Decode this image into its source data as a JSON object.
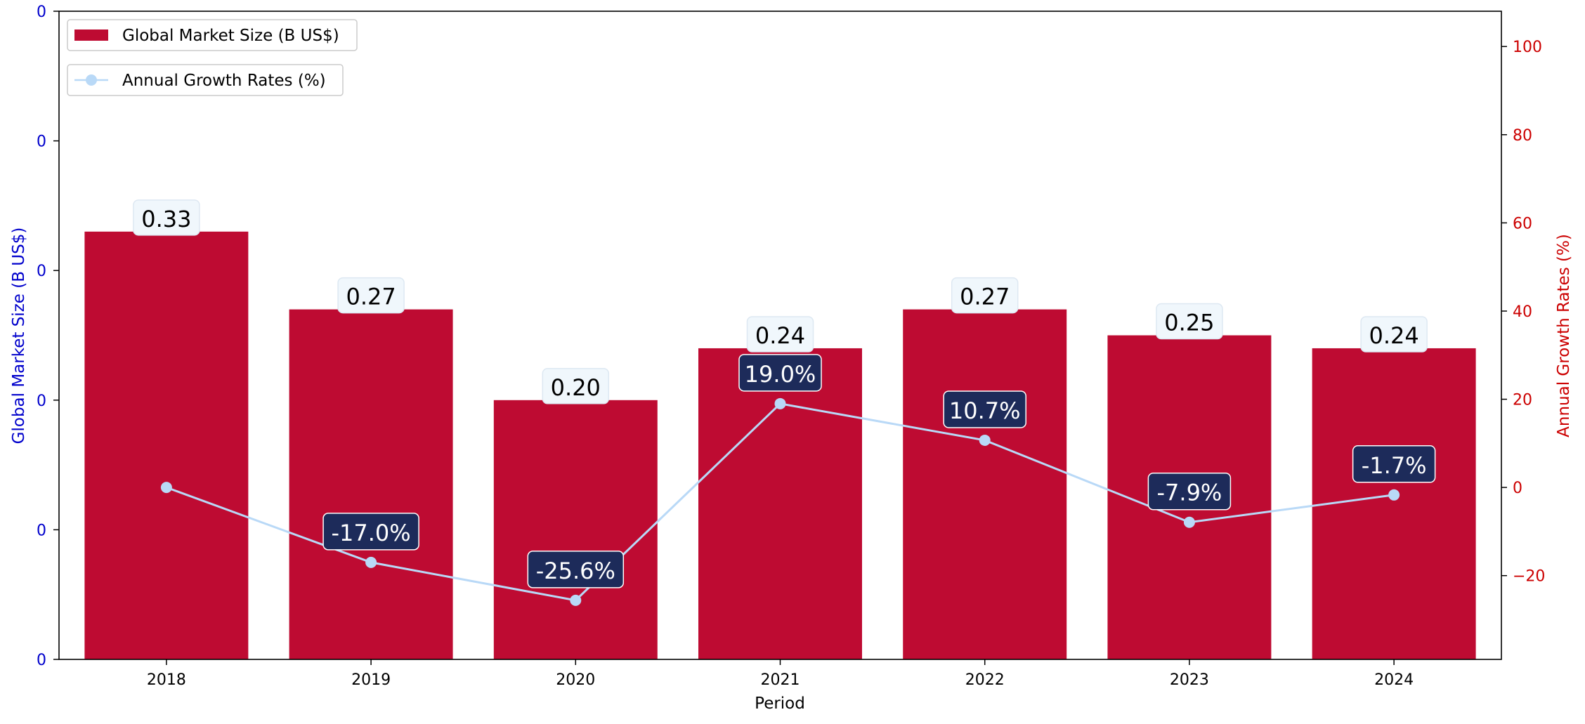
{
  "chart_data": {
    "type": "bar",
    "categories": [
      "2018",
      "2019",
      "2020",
      "2021",
      "2022",
      "2023",
      "2024"
    ],
    "series": [
      {
        "name": "Global Market Size (B US$)",
        "type": "bar",
        "axis": "left",
        "values": [
          0.33,
          0.27,
          0.2,
          0.24,
          0.27,
          0.25,
          0.24
        ],
        "labels": [
          "0.33",
          "0.27",
          "0.20",
          "0.24",
          "0.27",
          "0.25",
          "0.24"
        ],
        "color": "#be0b32"
      },
      {
        "name": "Annual Growth Rates (%)",
        "type": "line",
        "axis": "right",
        "values": [
          0.0,
          -17.0,
          -25.6,
          19.0,
          10.7,
          -7.9,
          -1.7
        ],
        "labels": [
          "",
          "-17.0%",
          "-25.6%",
          "19.0%",
          "10.7%",
          "-7.9%",
          "-1.7%"
        ],
        "color": "#b9d9f7"
      }
    ],
    "xlabel": "Period",
    "ylabel": "Global Market Size (B US$)",
    "y2label": "Annual Growth Rates (%)",
    "ylim": [
      0,
      0.5
    ],
    "y_tick_values": [
      0,
      0.1,
      0.2,
      0.3,
      0.4,
      0.5
    ],
    "y_tick_labels": [
      "0",
      "0",
      "0",
      "0",
      "0",
      "0"
    ],
    "y2lim": [
      -39,
      108
    ],
    "y2_ticks": [
      -20,
      0,
      20,
      40,
      60,
      80,
      100
    ],
    "y2_tick_labels": [
      "−20",
      "0",
      "20",
      "40",
      "60",
      "80",
      "100"
    ],
    "grid": false,
    "legend": "top-left",
    "colors": {
      "left_axis": "#0000cc",
      "right_axis": "#cc0000",
      "bar": "#be0b32",
      "line": "#b9d9f7",
      "bar_label_bg": "#f0f7fc",
      "growth_label_bg": "#1d2b5a"
    }
  }
}
